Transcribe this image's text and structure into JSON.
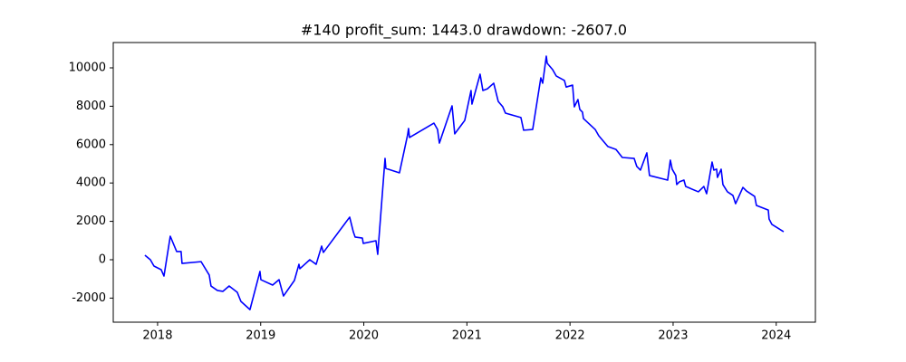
{
  "chart_data": {
    "type": "line",
    "title": "#140   profit_sum: 1443.0 drawdown: -2607.0",
    "x": [
      2017.877,
      2017.93,
      2017.965,
      2018.035,
      2018.062,
      2018.123,
      2018.185,
      2018.228,
      2018.237,
      2018.422,
      2018.501,
      2018.518,
      2018.58,
      2018.633,
      2018.694,
      2018.773,
      2018.808,
      2018.896,
      2018.993,
      2019.002,
      2019.116,
      2019.178,
      2019.204,
      2019.221,
      2019.327,
      2019.371,
      2019.38,
      2019.476,
      2019.538,
      2019.591,
      2019.608,
      2019.863,
      2019.898,
      2019.916,
      2019.986,
      2019.995,
      2020.118,
      2020.135,
      2020.206,
      2020.214,
      2020.346,
      2020.425,
      2020.434,
      2020.443,
      2020.68,
      2020.715,
      2020.733,
      2020.838,
      2020.856,
      2020.882,
      2020.979,
      2021.04,
      2021.049,
      2021.128,
      2021.155,
      2021.199,
      2021.26,
      2021.304,
      2021.348,
      2021.374,
      2021.524,
      2021.55,
      2021.638,
      2021.717,
      2021.735,
      2021.77,
      2021.779,
      2021.831,
      2021.866,
      2021.946,
      2021.963,
      2022.025,
      2022.042,
      2022.077,
      2022.095,
      2022.121,
      2022.13,
      2022.244,
      2022.279,
      2022.367,
      2022.446,
      2022.507,
      2022.622,
      2022.648,
      2022.683,
      2022.745,
      2022.771,
      2022.947,
      2022.973,
      2022.991,
      2023.026,
      2023.035,
      2023.061,
      2023.105,
      2023.122,
      2023.245,
      2023.298,
      2023.325,
      2023.378,
      2023.395,
      2023.422,
      2023.43,
      2023.466,
      2023.483,
      2023.527,
      2023.58,
      2023.606,
      2023.677,
      2023.712,
      2023.791,
      2023.808,
      2023.923,
      2023.931,
      2023.958,
      2024.072
    ],
    "series": [
      {
        "color": "#0000ff",
        "values": [
          236,
          0,
          -330,
          -520,
          -850,
          1226,
          425,
          425,
          -190,
          -100,
          -800,
          -1370,
          -1600,
          -1650,
          -1370,
          -1700,
          -2170,
          -2600,
          -610,
          -1040,
          -1320,
          -1040,
          -1560,
          -1890,
          -1080,
          -240,
          -470,
          0,
          -240,
          710,
          380,
          2220,
          1460,
          1180,
          1130,
          850,
          990,
          280,
          5280,
          4760,
          4530,
          6510,
          6840,
          6370,
          7120,
          6790,
          6080,
          7740,
          8020,
          6560,
          7260,
          8820,
          8110,
          9670,
          8820,
          8910,
          9200,
          8250,
          7970,
          7640,
          7410,
          6750,
          6790,
          9480,
          9200,
          10610,
          10240,
          9910,
          9580,
          9340,
          9000,
          9100,
          7970,
          8350,
          7830,
          7690,
          7360,
          6790,
          6460,
          5900,
          5750,
          5330,
          5280,
          4860,
          4670,
          5570,
          4390,
          4150,
          5190,
          4720,
          4390,
          3920,
          4060,
          4150,
          3820,
          3540,
          3820,
          3440,
          5090,
          4670,
          4720,
          4290,
          4720,
          3920,
          3540,
          3350,
          2920,
          3770,
          3580,
          3300,
          2830,
          2590,
          2120,
          1840,
          1460
        ]
      }
    ],
    "xlim": [
      2017.57,
      2024.38
    ],
    "xticks": [
      2018,
      2019,
      2020,
      2021,
      2022,
      2023,
      2024
    ],
    "ylim": [
      -3255,
      11320
    ],
    "yticks": [
      -2000,
      0,
      2000,
      4000,
      6000,
      8000,
      10000
    ],
    "grid": false
  }
}
